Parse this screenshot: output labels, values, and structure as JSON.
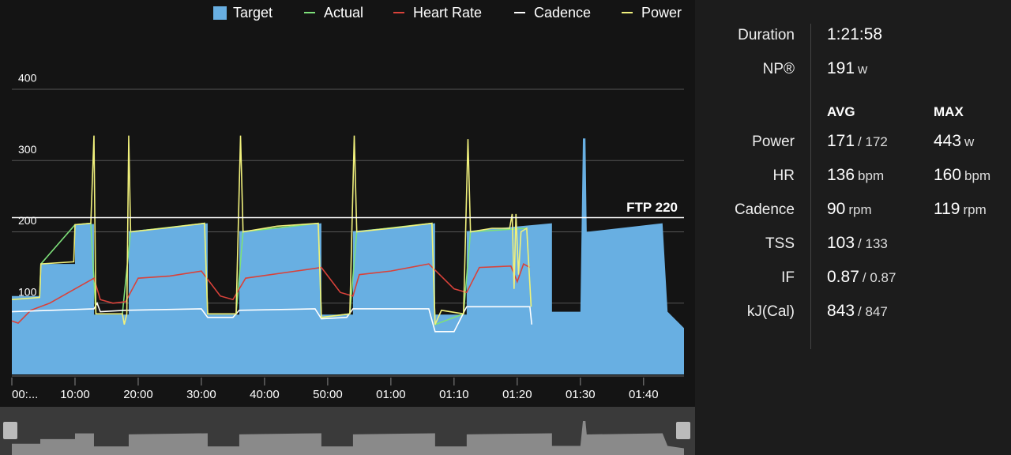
{
  "chart_data": {
    "type": "line",
    "legend": "top",
    "grid": true,
    "xlim": [
      0,
      106.4
    ],
    "xticks": [
      {
        "value": 0,
        "label": "00:..."
      },
      {
        "value": 10,
        "label": "10:00"
      },
      {
        "value": 20,
        "label": "20:00"
      },
      {
        "value": 30,
        "label": "30:00"
      },
      {
        "value": 40,
        "label": "40:00"
      },
      {
        "value": 50,
        "label": "50:00"
      },
      {
        "value": 60,
        "label": "01:00"
      },
      {
        "value": 70,
        "label": "01:10"
      },
      {
        "value": 80,
        "label": "01:20"
      },
      {
        "value": 90,
        "label": "01:30"
      },
      {
        "value": 100,
        "label": "01:40"
      }
    ],
    "ylim": [
      0,
      400
    ],
    "yticks": [
      100,
      200,
      300,
      400
    ],
    "annotation": {
      "label": "FTP 220",
      "value": 220
    },
    "series": [
      {
        "name": "Target",
        "color": "#68afe2",
        "style": "area",
        "x": [
          0,
          4.5,
          4.5,
          10,
          10,
          13,
          13,
          18.5,
          18.5,
          31,
          31,
          36,
          36,
          49,
          49,
          54,
          54,
          67,
          67,
          72,
          72,
          83,
          85.5,
          85.5,
          90,
          90.4,
          90.8,
          91,
          103,
          103.8,
          106.4
        ],
        "values": [
          110,
          110,
          155,
          155,
          211,
          211,
          84,
          84,
          201,
          212,
          84,
          84,
          201,
          212,
          84,
          84,
          201,
          212,
          84,
          84,
          201,
          210,
          212,
          88,
          88,
          331,
          331,
          200,
          212,
          88,
          65
        ]
      },
      {
        "name": "Actual",
        "color": "#7ee07a",
        "style": "line",
        "x": [
          0,
          4.4,
          4.6,
          10,
          12.5,
          13.3,
          17.5,
          18.8,
          30.5,
          31,
          35.5,
          36.6,
          48.5,
          49,
          53.5,
          54.6,
          66.5,
          67,
          71.5,
          72.6,
          81.5,
          82.2
        ],
        "values": [
          105,
          108,
          155,
          210,
          212,
          85,
          85,
          200,
          212,
          85,
          85,
          200,
          212,
          80,
          85,
          200,
          212,
          70,
          85,
          200,
          205,
          95
        ]
      },
      {
        "name": "Heart Rate",
        "color": "#d9423a",
        "style": "line",
        "x": [
          0,
          1,
          3,
          6,
          9,
          13,
          14,
          16,
          18,
          20,
          25,
          30,
          33,
          35,
          37,
          45,
          49,
          52,
          54,
          55,
          60,
          66,
          70,
          72,
          74,
          79,
          80,
          81,
          82
        ],
        "values": [
          75,
          72,
          90,
          100,
          115,
          135,
          105,
          100,
          102,
          135,
          138,
          145,
          110,
          105,
          135,
          145,
          150,
          115,
          110,
          140,
          145,
          155,
          120,
          115,
          150,
          152,
          130,
          155,
          150
        ]
      },
      {
        "name": "Cadence",
        "color": "#ffffff",
        "style": "line",
        "x": [
          0,
          13,
          13.5,
          14,
          18,
          30,
          31,
          35,
          36,
          48,
          49,
          53,
          54,
          66,
          67,
          70,
          72,
          82,
          82.3
        ],
        "values": [
          88,
          92,
          100,
          88,
          90,
          92,
          80,
          80,
          90,
          92,
          78,
          80,
          92,
          92,
          60,
          60,
          95,
          95,
          70
        ]
      },
      {
        "name": "Power",
        "color": "#f0f07c",
        "style": "line",
        "x": [
          0,
          4.4,
          4.6,
          9.8,
          10,
          12.5,
          13,
          13.3,
          17.5,
          17.8,
          18.2,
          18.5,
          18.8,
          24,
          30.5,
          31,
          35.5,
          36.2,
          36.6,
          42,
          48.5,
          49,
          53.5,
          54.2,
          54.6,
          60,
          66.5,
          67,
          68,
          71.5,
          72.2,
          72.6,
          76,
          78.8,
          79.2,
          79.5,
          79.8,
          80.2,
          80.6,
          81.5,
          82.2
        ],
        "values": [
          105,
          108,
          155,
          158,
          210,
          212,
          335,
          85,
          85,
          70,
          85,
          335,
          200,
          205,
          212,
          85,
          85,
          335,
          200,
          208,
          212,
          80,
          85,
          335,
          200,
          205,
          212,
          70,
          90,
          85,
          330,
          200,
          205,
          205,
          225,
          120,
          225,
          140,
          200,
          205,
          95
        ]
      }
    ]
  },
  "stats": {
    "duration": {
      "label": "Duration",
      "value": "1:21:58"
    },
    "np": {
      "label": "NP®",
      "value": "191",
      "unit": "w"
    },
    "headers": [
      "AVG",
      "MAX"
    ],
    "rows": [
      {
        "label": "Power",
        "avg": "171",
        "avg_unit": "/ 172",
        "max": "443",
        "max_unit": "w"
      },
      {
        "label": "HR",
        "avg": "136",
        "avg_unit": "bpm",
        "max": "160",
        "max_unit": "bpm"
      },
      {
        "label": "Cadence",
        "avg": "90",
        "avg_unit": "rpm",
        "max": "119",
        "max_unit": "rpm"
      },
      {
        "label": "TSS",
        "avg": "103",
        "avg_unit": "/ 133"
      },
      {
        "label": "IF",
        "avg": "0.87",
        "avg_unit": "/ 0.87"
      },
      {
        "label": "kJ(Cal)",
        "avg": "843",
        "avg_unit": "/ 847"
      }
    ]
  }
}
